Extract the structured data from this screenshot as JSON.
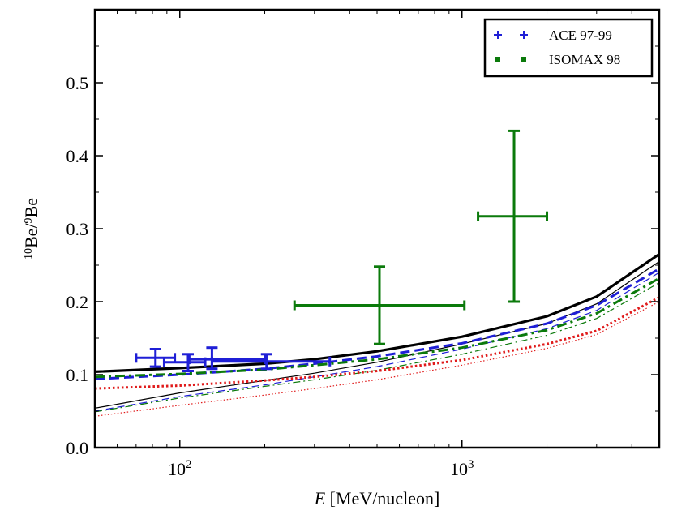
{
  "chart_data": {
    "type": "line",
    "xlabel": "E [MeV/nucleon]",
    "xlabel_parts": {
      "var": "E",
      "unit": " [MeV/nucleon]"
    },
    "ylabel": "10Be/9Be",
    "ylabel_parts": {
      "sup1": "10",
      "base1": "Be/",
      "sup2": "9",
      "base2": "Be"
    },
    "x_scale": "log",
    "xlim": [
      50,
      5000
    ],
    "ylim": [
      0.0,
      0.6
    ],
    "grid": false,
    "legend_position": "top-right",
    "x_ticks": [
      {
        "value": 100,
        "base": "10",
        "exp": "2"
      },
      {
        "value": 1000,
        "base": "10",
        "exp": "3"
      }
    ],
    "y_ticks": [
      {
        "value": 0.0,
        "label": "0.0"
      },
      {
        "value": 0.1,
        "label": "0.1"
      },
      {
        "value": 0.2,
        "label": "0.2"
      },
      {
        "value": 0.3,
        "label": "0.3"
      },
      {
        "value": 0.4,
        "label": "0.4"
      },
      {
        "value": 0.5,
        "label": "0.5"
      }
    ],
    "legend": [
      {
        "label": "ACE 97-99",
        "color": "#1f1fd6",
        "marker": "plus"
      },
      {
        "label": "ISOMAX 98",
        "color": "#0b7a0b",
        "marker": "square"
      }
    ],
    "measurements": [
      {
        "label": "ACE 97-99",
        "color": "#1f1fd6",
        "points": [
          {
            "x": 82,
            "y": 0.123,
            "xmin": 70,
            "xmax": 96,
            "ymin": 0.111,
            "ymax": 0.135
          },
          {
            "x": 107,
            "y": 0.117,
            "xmin": 88,
            "xmax": 123,
            "ymin": 0.105,
            "ymax": 0.128
          },
          {
            "x": 130,
            "y": 0.121,
            "xmin": 108,
            "xmax": 200,
            "ymin": 0.108,
            "ymax": 0.137
          },
          {
            "x": 203,
            "y": 0.118,
            "xmin": 130,
            "xmax": 340,
            "ymin": 0.108,
            "ymax": 0.128
          }
        ]
      },
      {
        "label": "ISOMAX 98",
        "color": "#0b7a0b",
        "points": [
          {
            "x": 510,
            "y": 0.195,
            "xmin": 255,
            "xmax": 1020,
            "ymin": 0.142,
            "ymax": 0.248
          },
          {
            "x": 1530,
            "y": 0.317,
            "xmin": 1140,
            "xmax": 2000,
            "ymin": 0.2,
            "ymax": 0.434
          }
        ]
      }
    ],
    "curves": [
      {
        "color": "#000000",
        "style": "solid",
        "width": 3.2,
        "x": [
          50,
          100,
          200,
          300,
          500,
          1000,
          2000,
          3000,
          5000
        ],
        "y": [
          0.104,
          0.109,
          0.115,
          0.121,
          0.132,
          0.152,
          0.18,
          0.207,
          0.265
        ]
      },
      {
        "color": "#000000",
        "style": "solid",
        "width": 1.2,
        "x": [
          50,
          100,
          200,
          300,
          500,
          1000,
          2000,
          3000,
          5000
        ],
        "y": [
          0.054,
          0.075,
          0.092,
          0.102,
          0.117,
          0.142,
          0.17,
          0.197,
          0.255
        ]
      },
      {
        "color": "#1f1fd6",
        "style": "dashed",
        "width": 3.0,
        "x": [
          50,
          100,
          200,
          300,
          500,
          1000,
          2000,
          3000,
          5000
        ],
        "y": [
          0.094,
          0.1,
          0.108,
          0.115,
          0.125,
          0.143,
          0.17,
          0.195,
          0.245
        ]
      },
      {
        "color": "#1f1fd6",
        "style": "dashed",
        "width": 1.2,
        "x": [
          50,
          100,
          200,
          300,
          500,
          1000,
          2000,
          3000,
          5000
        ],
        "y": [
          0.05,
          0.07,
          0.086,
          0.097,
          0.111,
          0.135,
          0.163,
          0.188,
          0.24
        ]
      },
      {
        "color": "#0b7a0b",
        "style": "dashdot",
        "width": 3.0,
        "x": [
          50,
          100,
          200,
          300,
          500,
          1000,
          2000,
          3000,
          5000
        ],
        "y": [
          0.097,
          0.101,
          0.107,
          0.113,
          0.121,
          0.137,
          0.161,
          0.184,
          0.232
        ]
      },
      {
        "color": "#0b7a0b",
        "style": "dashdot",
        "width": 1.2,
        "x": [
          50,
          100,
          200,
          300,
          500,
          1000,
          2000,
          3000,
          5000
        ],
        "y": [
          0.049,
          0.068,
          0.084,
          0.093,
          0.106,
          0.128,
          0.154,
          0.177,
          0.226
        ]
      },
      {
        "color": "#e01a1a",
        "style": "dotted",
        "width": 3.0,
        "x": [
          50,
          100,
          200,
          300,
          500,
          1000,
          2000,
          3000,
          5000
        ],
        "y": [
          0.081,
          0.085,
          0.092,
          0.097,
          0.105,
          0.12,
          0.142,
          0.16,
          0.206
        ]
      },
      {
        "color": "#e01a1a",
        "style": "dotted",
        "width": 1.2,
        "x": [
          50,
          100,
          200,
          300,
          500,
          1000,
          2000,
          3000,
          5000
        ],
        "y": [
          0.043,
          0.058,
          0.072,
          0.081,
          0.093,
          0.113,
          0.136,
          0.155,
          0.2
        ]
      }
    ]
  }
}
